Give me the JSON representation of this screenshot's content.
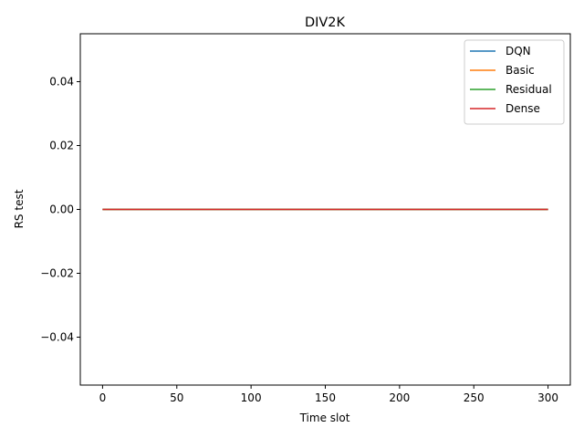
{
  "chart_data": {
    "type": "line",
    "title": "DIV2K",
    "xlabel": "Time slot",
    "ylabel": "RS test",
    "xlim": [
      -15,
      315
    ],
    "ylim": [
      -0.055,
      0.055
    ],
    "x_ticks": [
      0,
      50,
      100,
      150,
      200,
      250,
      300
    ],
    "x_tick_labels": [
      "0",
      "50",
      "100",
      "150",
      "200",
      "250",
      "300"
    ],
    "y_ticks": [
      -0.04,
      -0.02,
      0.0,
      0.02,
      0.04
    ],
    "y_tick_labels": [
      "−0.04",
      "−0.02",
      "0.00",
      "0.02",
      "0.04"
    ],
    "grid": false,
    "legend_position": "top-right",
    "series": [
      {
        "name": "DQN",
        "color": "#1f77b4",
        "x": [
          0,
          300
        ],
        "values": [
          0,
          0
        ]
      },
      {
        "name": "Basic",
        "color": "#ff7f0e",
        "x": [
          0,
          300
        ],
        "values": [
          0,
          0
        ]
      },
      {
        "name": "Residual",
        "color": "#2ca02c",
        "x": [
          0,
          300
        ],
        "values": [
          0,
          0
        ]
      },
      {
        "name": "Dense",
        "color": "#d62728",
        "x": [
          0,
          300
        ],
        "values": [
          0,
          0
        ]
      }
    ]
  }
}
